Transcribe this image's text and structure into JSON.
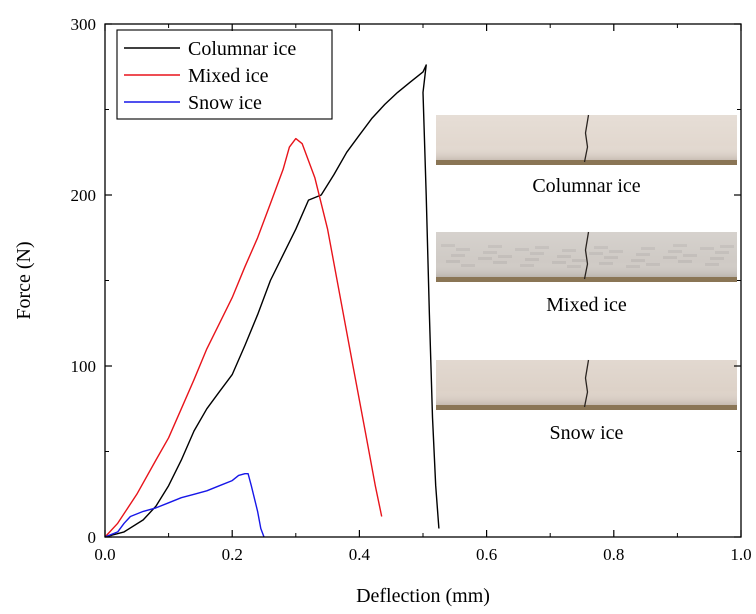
{
  "chart_data": {
    "type": "line",
    "xlabel": "Deflection (mm)",
    "ylabel": "Force (N)",
    "xlim": [
      0.0,
      1.0
    ],
    "ylim": [
      0,
      300
    ],
    "x_ticks": [
      0.0,
      0.2,
      0.4,
      0.6,
      0.8,
      1.0
    ],
    "x_tick_labels": [
      "0.0",
      "0.2",
      "0.4",
      "0.6",
      "0.8",
      "1.0"
    ],
    "y_ticks": [
      0,
      100,
      200,
      300
    ],
    "y_tick_labels": [
      "0",
      "100",
      "200",
      "300"
    ],
    "grid": false,
    "legend_position": "top-left",
    "series": [
      {
        "name": "Columnar ice",
        "color": "#000000",
        "points": [
          [
            0.0,
            0
          ],
          [
            0.03,
            3
          ],
          [
            0.06,
            10
          ],
          [
            0.08,
            18
          ],
          [
            0.1,
            30
          ],
          [
            0.12,
            45
          ],
          [
            0.14,
            62
          ],
          [
            0.16,
            75
          ],
          [
            0.18,
            85
          ],
          [
            0.2,
            95
          ],
          [
            0.22,
            112
          ],
          [
            0.24,
            130
          ],
          [
            0.26,
            150
          ],
          [
            0.28,
            165
          ],
          [
            0.3,
            180
          ],
          [
            0.32,
            197
          ],
          [
            0.34,
            200
          ],
          [
            0.36,
            212
          ],
          [
            0.38,
            225
          ],
          [
            0.4,
            235
          ],
          [
            0.42,
            245
          ],
          [
            0.44,
            253
          ],
          [
            0.46,
            260
          ],
          [
            0.48,
            266
          ],
          [
            0.5,
            272
          ],
          [
            0.505,
            276
          ],
          [
            0.5,
            260
          ],
          [
            0.505,
            200
          ],
          [
            0.51,
            130
          ],
          [
            0.515,
            70
          ],
          [
            0.52,
            30
          ],
          [
            0.525,
            5
          ]
        ]
      },
      {
        "name": "Mixed ice",
        "color": "#e8141b",
        "points": [
          [
            0.0,
            0
          ],
          [
            0.02,
            8
          ],
          [
            0.05,
            25
          ],
          [
            0.08,
            45
          ],
          [
            0.1,
            58
          ],
          [
            0.12,
            75
          ],
          [
            0.14,
            92
          ],
          [
            0.16,
            110
          ],
          [
            0.18,
            125
          ],
          [
            0.2,
            140
          ],
          [
            0.22,
            158
          ],
          [
            0.24,
            175
          ],
          [
            0.26,
            195
          ],
          [
            0.28,
            215
          ],
          [
            0.29,
            228
          ],
          [
            0.3,
            233
          ],
          [
            0.31,
            230
          ],
          [
            0.33,
            210
          ],
          [
            0.35,
            180
          ],
          [
            0.37,
            140
          ],
          [
            0.39,
            100
          ],
          [
            0.41,
            60
          ],
          [
            0.425,
            30
          ],
          [
            0.435,
            12
          ]
        ]
      },
      {
        "name": "Snow ice",
        "color": "#1717e8",
        "points": [
          [
            0.0,
            0
          ],
          [
            0.02,
            3
          ],
          [
            0.03,
            8
          ],
          [
            0.04,
            12
          ],
          [
            0.06,
            15
          ],
          [
            0.08,
            17
          ],
          [
            0.1,
            20
          ],
          [
            0.12,
            23
          ],
          [
            0.14,
            25
          ],
          [
            0.16,
            27
          ],
          [
            0.18,
            30
          ],
          [
            0.2,
            33
          ],
          [
            0.21,
            36
          ],
          [
            0.22,
            37
          ],
          [
            0.225,
            37
          ],
          [
            0.23,
            30
          ],
          [
            0.24,
            15
          ],
          [
            0.245,
            5
          ],
          [
            0.25,
            0
          ]
        ]
      }
    ],
    "inset_photos": [
      {
        "caption": "Columnar ice",
        "tone": "#e2d8cf",
        "crack_offset": 0.5
      },
      {
        "caption": "Mixed ice",
        "tone": "#cfcac5",
        "crack_offset": 0.5
      },
      {
        "caption": "Snow ice",
        "tone": "#ddd2c8",
        "crack_offset": 0.5
      }
    ]
  }
}
